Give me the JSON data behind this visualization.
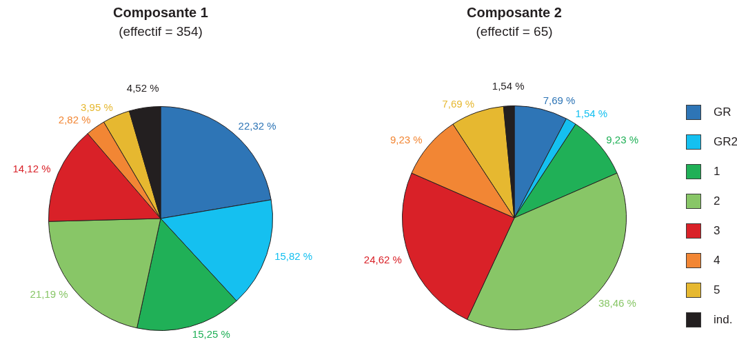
{
  "chart_data": [
    {
      "type": "pie",
      "title": "Composante 1",
      "subtitle": "(effectif = 354)",
      "categories": [
        null,
        null,
        null,
        null,
        null,
        null,
        null,
        null
      ],
      "values": [
        22.32,
        15.82,
        15.25,
        21.19,
        14.12,
        2.82,
        3.95,
        4.52
      ],
      "colors": [
        "#2e75b6",
        "#15c0f0",
        "#20b057",
        "#88c667",
        "#d92128",
        "#f28634",
        "#e6b830",
        "#231f20"
      ],
      "value_labels": [
        "22,32 %",
        "15,82 %",
        "15,25 %",
        "21,19 %",
        "14,12 %",
        "2,82 %",
        "3,95 %",
        "4,52 %"
      ],
      "legend": false
    },
    {
      "type": "pie",
      "title": "Composante 2",
      "subtitle": "(effectif = 65)",
      "categories": [
        "GR",
        "GR2",
        "1",
        "2",
        "3",
        "4",
        "5",
        "ind."
      ],
      "values": [
        7.69,
        1.54,
        9.23,
        38.46,
        24.62,
        9.23,
        7.69,
        1.54
      ],
      "colors": [
        "#2e75b6",
        "#15c0f0",
        "#20b057",
        "#88c667",
        "#d92128",
        "#f28634",
        "#e6b830",
        "#231f20"
      ],
      "value_labels": [
        "7,69 %",
        "1,54 %",
        "9,23 %",
        "38,46 %",
        "24,62 %",
        "9,23 %",
        "7,69 %",
        "1,54 %"
      ],
      "legend": "right"
    }
  ]
}
